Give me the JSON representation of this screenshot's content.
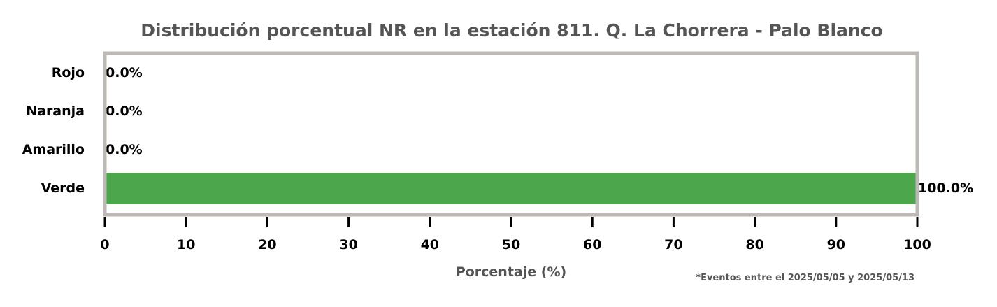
{
  "chart_data": {
    "type": "bar",
    "orientation": "horizontal",
    "title": "Distribución porcentual NR en la estación 811. Q. La Chorrera - Palo Blanco",
    "xlabel": "Porcentaje (%)",
    "ylabel": "",
    "xlim": [
      0,
      100
    ],
    "xticks": [
      "0",
      "10",
      "20",
      "30",
      "40",
      "50",
      "60",
      "70",
      "80",
      "90",
      "100"
    ],
    "categories": [
      "Rojo",
      "Naranja",
      "Amarillo",
      "Verde"
    ],
    "values": [
      0.0,
      0.0,
      0.0,
      100.0
    ],
    "value_labels": [
      "0.0%",
      "0.0%",
      "0.0%",
      "100.0%"
    ],
    "colors": [
      "#e53935",
      "#fb8c00",
      "#fdd835",
      "#4ca64c"
    ],
    "frame_color": "#bdb9b4",
    "grid": false,
    "legend": "none",
    "footnote": "*Eventos entre el 2025/05/05 y 2025/05/13"
  }
}
